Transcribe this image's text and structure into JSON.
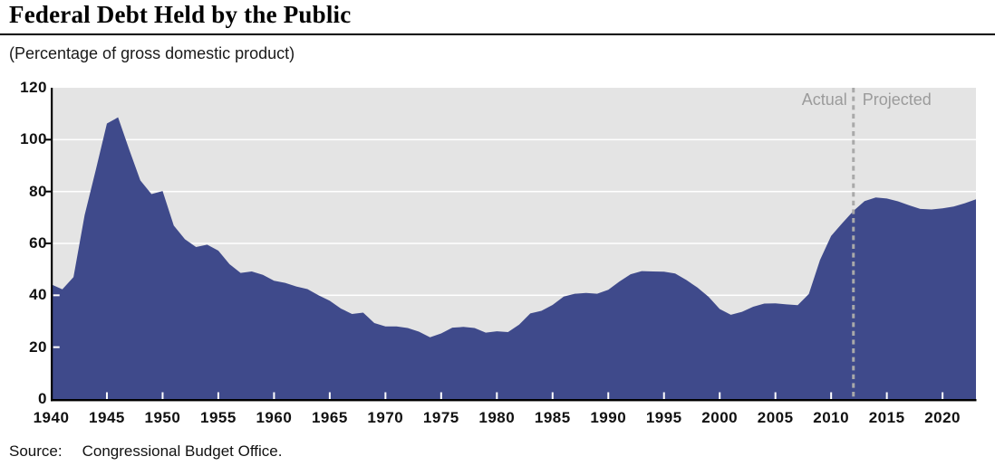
{
  "header": {
    "title": "Federal Debt Held by the Public",
    "subtitle": "(Percentage of gross domestic product)"
  },
  "annotations": {
    "actual": "Actual",
    "projected": "Projected"
  },
  "source": {
    "label": "Source:",
    "text": "Congressional Budget Office."
  },
  "chart_data": {
    "type": "area",
    "title": "Federal Debt Held by the Public",
    "ylabel": "Percentage of gross domestic product",
    "xlabel": "",
    "xlim": [
      1940,
      2023
    ],
    "ylim": [
      0,
      120
    ],
    "grid": true,
    "legend": "none",
    "boundary_year": 2012,
    "x_ticks": [
      1940,
      1945,
      1950,
      1955,
      1960,
      1965,
      1970,
      1975,
      1980,
      1985,
      1990,
      1995,
      2000,
      2005,
      2010,
      2015,
      2020
    ],
    "y_ticks": [
      0,
      20,
      40,
      60,
      80,
      100,
      120
    ],
    "x": [
      1940,
      1941,
      1942,
      1943,
      1944,
      1945,
      1946,
      1947,
      1948,
      1949,
      1950,
      1951,
      1952,
      1953,
      1954,
      1955,
      1956,
      1957,
      1958,
      1959,
      1960,
      1961,
      1962,
      1963,
      1964,
      1965,
      1966,
      1967,
      1968,
      1969,
      1970,
      1971,
      1972,
      1973,
      1974,
      1975,
      1976,
      1977,
      1978,
      1979,
      1980,
      1981,
      1982,
      1983,
      1984,
      1985,
      1986,
      1987,
      1988,
      1989,
      1990,
      1991,
      1992,
      1993,
      1994,
      1995,
      1996,
      1997,
      1998,
      1999,
      2000,
      2001,
      2002,
      2003,
      2004,
      2005,
      2006,
      2007,
      2008,
      2009,
      2010,
      2011,
      2012,
      2013,
      2014,
      2015,
      2016,
      2017,
      2018,
      2019,
      2020,
      2021,
      2022,
      2023
    ],
    "values": [
      44.2,
      42.3,
      47.0,
      70.9,
      88.3,
      106.2,
      108.6,
      96.2,
      84.3,
      79.0,
      80.2,
      66.9,
      61.6,
      58.6,
      59.5,
      57.2,
      52.0,
      48.6,
      49.2,
      47.9,
      45.6,
      44.8,
      43.4,
      42.4,
      40.0,
      37.9,
      34.9,
      32.8,
      33.3,
      29.3,
      28.0,
      28.0,
      27.4,
      26.0,
      23.8,
      25.3,
      27.5,
      27.8,
      27.4,
      25.6,
      26.1,
      25.8,
      28.7,
      33.0,
      34.0,
      36.3,
      39.5,
      40.6,
      40.9,
      40.6,
      42.1,
      45.3,
      48.1,
      49.3,
      49.2,
      49.1,
      48.4,
      45.9,
      43.0,
      39.4,
      34.7,
      32.5,
      33.6,
      35.6,
      36.8,
      36.9,
      36.5,
      36.2,
      40.5,
      53.6,
      62.9,
      67.8,
      72.5,
      76.3,
      77.7,
      77.3,
      76.2,
      74.7,
      73.3,
      73.1,
      73.5,
      74.2,
      75.5,
      77.0
    ],
    "series": [
      {
        "name": "Federal debt held by the public (actual 1940-2012, projected 2013-2023)"
      }
    ],
    "colors": {
      "area": "#3f4a8b",
      "plot_background": "#e4e4e4",
      "gridline": "#ffffff",
      "divider": "#a9a9a9",
      "annotation_text": "#9b9b9b",
      "axis": "#000000"
    }
  }
}
